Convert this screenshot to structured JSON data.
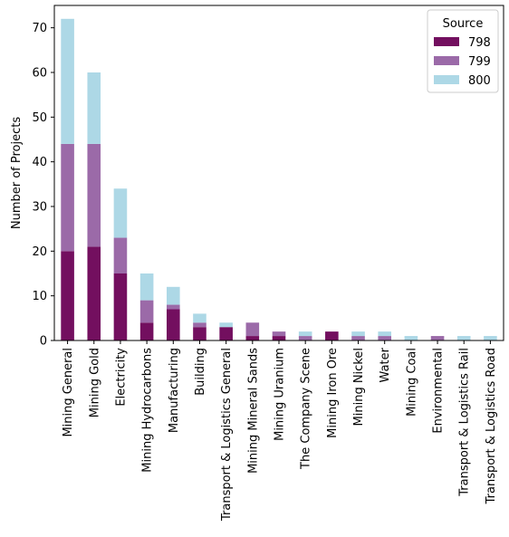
{
  "chart_data": {
    "type": "bar",
    "stacked": true,
    "title": "",
    "xlabel": "",
    "ylabel": "Number of Projects",
    "ylim": [
      0,
      75
    ],
    "yticks": [
      0,
      10,
      20,
      30,
      40,
      50,
      60,
      70
    ],
    "grid": false,
    "legend": {
      "title": "Source",
      "placement": "top-right"
    },
    "categories": [
      "Mining General",
      "Mining Gold",
      "Electricity",
      "Mining Hydrocarbons",
      "Manufacturing",
      "Building",
      "Transport & Logistics General",
      "Mining Mineral Sands",
      "Mining Uranium",
      "The Company Scene",
      "Mining Iron Ore",
      "Mining Nickel",
      "Water",
      "Mining Coal",
      "Environmental",
      "Transport & Logistics Rail",
      "Transport & Logistics Road"
    ],
    "series": [
      {
        "name": "798",
        "color": "#730f5f",
        "values": [
          20,
          21,
          15,
          4,
          7,
          3,
          3,
          1,
          1,
          0,
          2,
          0,
          0,
          0,
          0,
          0,
          0
        ]
      },
      {
        "name": "799",
        "color": "#9b6aa8",
        "values": [
          24,
          23,
          8,
          5,
          1,
          1,
          0,
          3,
          1,
          1,
          0,
          1,
          1,
          0,
          1,
          0,
          0
        ]
      },
      {
        "name": "800",
        "color": "#add8e6",
        "values": [
          28,
          16,
          11,
          6,
          4,
          2,
          1,
          0,
          0,
          1,
          0,
          1,
          1,
          1,
          0,
          1,
          1
        ]
      }
    ]
  }
}
